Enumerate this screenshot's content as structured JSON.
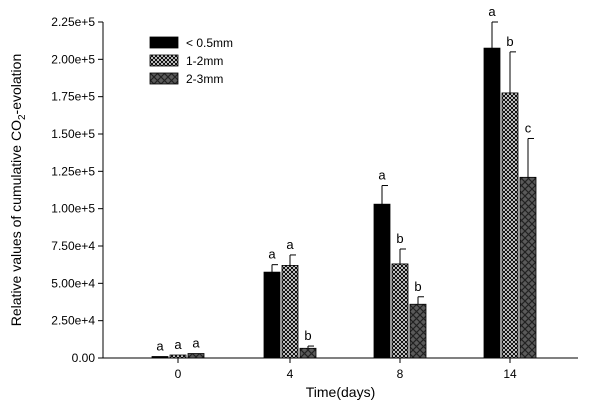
{
  "chart_data": {
    "type": "bar",
    "xlabel": "Time(days)",
    "ylabel": "Relative values of cumulative CO2-evolation",
    "ylabel_parts": {
      "pre": "Relative values of cumulative CO",
      "sub": "2",
      "post": "-evolation"
    },
    "categories": [
      "0",
      "4",
      "8",
      "14"
    ],
    "ylim": [
      0,
      225000
    ],
    "yticks": [
      0,
      25000,
      50000,
      75000,
      100000,
      125000,
      150000,
      175000,
      200000,
      225000
    ],
    "ytick_labels": [
      "0.00",
      "2.50e+4",
      "5.00e+4",
      "7.50e+4",
      "1.00e+5",
      "1.25e+5",
      "1.50e+5",
      "1.75e+5",
      "2.00e+5",
      "2.25e+5"
    ],
    "legend_position": "top-left",
    "grid": false,
    "series": [
      {
        "name": "< 0.5mm",
        "pattern": "solid",
        "color": "#000000",
        "values": [
          1000,
          57500,
          103000,
          207500
        ],
        "errors": [
          0,
          5000,
          12500,
          17500
        ],
        "letters": [
          "a",
          "a",
          "a",
          "a"
        ]
      },
      {
        "name": "1-2mm",
        "pattern": "crosshatch",
        "color": "#000000",
        "values": [
          2000,
          62000,
          63000,
          177500
        ],
        "errors": [
          0,
          7000,
          10000,
          27500
        ],
        "letters": [
          "a",
          "a",
          "b",
          "b"
        ]
      },
      {
        "name": "2-3mm",
        "pattern": "diagonal",
        "color": "#555555",
        "values": [
          3000,
          6500,
          36000,
          121000
        ],
        "errors": [
          0,
          1500,
          5000,
          26000
        ],
        "letters": [
          "a",
          "b",
          "b",
          "c"
        ]
      }
    ]
  }
}
